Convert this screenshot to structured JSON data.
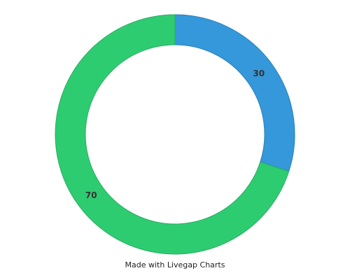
{
  "chart_data": {
    "type": "pie",
    "donut": true,
    "slices": [
      {
        "label": "30",
        "value": 30,
        "color": "#3498db"
      },
      {
        "label": "70",
        "value": 70,
        "color": "#2ecc71"
      }
    ],
    "legend": "none"
  },
  "credit": "Made with Livegap Charts"
}
